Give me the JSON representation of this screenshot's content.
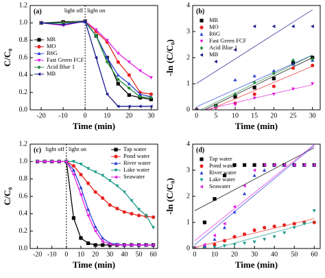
{
  "chart_data": [
    {
      "type": "line",
      "label": "(a)",
      "annotations": [
        "light off",
        "light on"
      ],
      "divider_x": 0,
      "xlabel": "Time (min)",
      "ylabel": "C/C₀",
      "xlim": [
        -25,
        33
      ],
      "xticks": [
        -20,
        -10,
        0,
        10,
        20,
        30
      ],
      "ylim": [
        0,
        1.2
      ],
      "yticks": [
        {
          "value": 0,
          "label": "0.0"
        },
        {
          "value": 0.2,
          "label": "0.2"
        },
        {
          "value": 0.4,
          "label": "0.4"
        },
        {
          "value": 0.6,
          "label": "0.6"
        },
        {
          "value": 0.8,
          "label": "0.8"
        },
        {
          "value": 1.0,
          "label": "1.0"
        },
        {
          "value": 1.2,
          "label": "1.2"
        }
      ],
      "legend": "left",
      "x": [
        -20,
        -10,
        0,
        5,
        10,
        15,
        20,
        25,
        30
      ],
      "series": [
        {
          "name": "MR",
          "color": "#000000",
          "marker": "square",
          "values": [
            1.0,
            1.01,
            1.02,
            0.85,
            0.6,
            0.3,
            0.17,
            0.14,
            0.12
          ]
        },
        {
          "name": "MO",
          "color": "#e8231f",
          "marker": "circle",
          "values": [
            1.0,
            1.0,
            1.02,
            0.9,
            0.78,
            0.55,
            0.4,
            0.2,
            0.18
          ]
        },
        {
          "name": "R6G",
          "color": "#2a3fd6",
          "marker": "triangle",
          "values": [
            1.0,
            1.0,
            1.01,
            0.85,
            0.6,
            0.4,
            0.3,
            0.18,
            0.15
          ]
        },
        {
          "name": "Fast Green FCF",
          "color": "#e020e0",
          "marker": "triangle-down",
          "values": [
            1.0,
            0.97,
            1.02,
            0.92,
            0.8,
            0.65,
            0.55,
            0.45,
            0.37
          ]
        },
        {
          "name": "Acid Blue 1",
          "color": "#1f8a3a",
          "marker": "diamond",
          "values": [
            1.0,
            1.0,
            1.02,
            0.85,
            0.55,
            0.35,
            0.25,
            0.15,
            0.14
          ]
        },
        {
          "name": "MB",
          "color": "#1a1a8c",
          "marker": "triangle-left",
          "values": [
            1.0,
            0.98,
            1.02,
            0.6,
            0.18,
            0.04,
            0.04,
            0.04,
            0.04
          ]
        }
      ]
    },
    {
      "type": "scatter",
      "label": "(b)",
      "fit": true,
      "xlabel": "Time (min)",
      "ylabel": "-ln (C/C₀)",
      "xlim": [
        -1,
        32
      ],
      "xticks": [
        0,
        5,
        10,
        15,
        20,
        25,
        30
      ],
      "ylim": [
        0,
        4
      ],
      "yticks": [
        0,
        1,
        2,
        3,
        4
      ],
      "legend": "top-left",
      "x": [
        0,
        5,
        10,
        15,
        20,
        25,
        30
      ],
      "series": [
        {
          "name": "MR",
          "color": "#000000",
          "marker": "square",
          "values": [
            0,
            0.15,
            0.5,
            0.85,
            1.2,
            1.8,
            2.0
          ]
        },
        {
          "name": "MO",
          "color": "#e8231f",
          "marker": "circle",
          "values": [
            0,
            0.1,
            0.25,
            0.6,
            0.9,
            1.6,
            1.7
          ]
        },
        {
          "name": "R6G",
          "color": "#2a3fd6",
          "marker": "triangle",
          "values": [
            0,
            0.15,
            1.15,
            1.3,
            1.5,
            1.75,
            1.9
          ]
        },
        {
          "name": "Fast Green FCF",
          "color": "#e020e0",
          "marker": "triangle-down",
          "values": [
            0,
            0.08,
            0.2,
            0.45,
            0.6,
            0.8,
            1.0
          ]
        },
        {
          "name": "Acid Blue 1",
          "color": "#1f8a3a",
          "marker": "diamond",
          "values": [
            0,
            0.15,
            0.6,
            1.05,
            1.4,
            1.9,
            1.95
          ]
        },
        {
          "name": "MB",
          "color": "#1a1a8c",
          "marker": "triangle-left",
          "values": [
            0,
            1.85,
            2.3,
            3.2,
            3.2,
            3.2,
            3.2
          ]
        }
      ]
    },
    {
      "type": "line",
      "label": "(c)",
      "annotations": [
        "light off",
        "light on"
      ],
      "divider_x": 0,
      "xlabel": "Time (min)",
      "ylabel": "C/C₀",
      "xlim": [
        -25,
        63
      ],
      "xticks": [
        -20,
        -10,
        0,
        10,
        20,
        30,
        40,
        50,
        60
      ],
      "ylim": [
        0,
        1.2
      ],
      "yticks": [
        {
          "value": 0,
          "label": "0.0"
        },
        {
          "value": 0.2,
          "label": "0.2"
        },
        {
          "value": 0.4,
          "label": "0.4"
        },
        {
          "value": 0.6,
          "label": "0.6"
        },
        {
          "value": 0.8,
          "label": "0.8"
        },
        {
          "value": 1.0,
          "label": "1.0"
        },
        {
          "value": 1.2,
          "label": "1.2"
        }
      ],
      "legend": "top-right",
      "x": [
        -20,
        -15,
        -10,
        -5,
        0,
        5,
        10,
        15,
        20,
        25,
        30,
        35,
        40,
        45,
        50,
        55,
        60
      ],
      "series": [
        {
          "name": "Tap water",
          "color": "#000000",
          "marker": "square",
          "values": [
            1,
            1,
            1,
            1,
            1,
            0.35,
            0.12,
            0.06,
            0.04,
            0.04,
            0.04,
            0.04,
            0.04,
            0.04,
            0.04,
            0.04,
            0.04
          ]
        },
        {
          "name": "Pond water",
          "color": "#e8231f",
          "marker": "circle",
          "values": [
            1,
            1,
            1,
            1,
            1,
            0.95,
            0.85,
            0.75,
            0.65,
            0.58,
            0.5,
            0.46,
            0.42,
            0.4,
            0.38,
            0.37,
            0.36
          ]
        },
        {
          "name": "River water",
          "color": "#2a3fd6",
          "marker": "triangle",
          "values": [
            1,
            1,
            1,
            1,
            1,
            0.9,
            0.7,
            0.45,
            0.25,
            0.12,
            0.06,
            0.05,
            0.04,
            0.04,
            0.04,
            0.04,
            0.04
          ]
        },
        {
          "name": "Lake water",
          "color": "#1a9a8a",
          "marker": "triangle-down",
          "values": [
            1,
            1,
            1,
            1,
            1,
            1,
            0.97,
            0.92,
            0.88,
            0.84,
            0.78,
            0.72,
            0.65,
            0.55,
            0.45,
            0.38,
            0.24
          ]
        },
        {
          "name": "Seawater",
          "color": "#e020e0",
          "marker": "triangle-left",
          "values": [
            1,
            1,
            1,
            1,
            1,
            0.85,
            0.62,
            0.38,
            0.2,
            0.08,
            0.05,
            0.04,
            0.04,
            0.04,
            0.04,
            0.04,
            0.04
          ]
        }
      ]
    },
    {
      "type": "scatter",
      "label": "(d)",
      "fit": true,
      "xlabel": "Time (min)",
      "ylabel": "-ln (C/C₀)",
      "xlim": [
        -1,
        63
      ],
      "xticks": [
        0,
        10,
        20,
        30,
        40,
        50,
        60
      ],
      "ylim": [
        0,
        4
      ],
      "yticks": [
        0,
        1,
        2,
        3,
        4
      ],
      "legend": "top-left",
      "x": [
        0,
        5,
        10,
        15,
        20,
        25,
        30,
        35,
        40,
        45,
        50,
        55,
        60
      ],
      "series": [
        {
          "name": "Tap water",
          "color": "#000000",
          "marker": "square",
          "values": [
            0,
            1.0,
            1.9,
            2.8,
            3.2,
            3.2,
            3.2,
            3.2,
            3.2,
            3.2,
            3.2,
            3.2,
            3.2
          ]
        },
        {
          "name": "Pond water",
          "color": "#e8231f",
          "marker": "circle",
          "values": [
            0,
            0.05,
            0.15,
            0.3,
            0.45,
            0.55,
            0.7,
            0.8,
            0.85,
            0.9,
            0.95,
            1.0,
            1.0
          ]
        },
        {
          "name": "River water",
          "color": "#2a3fd6",
          "marker": "triangle",
          "values": [
            0,
            0.1,
            0.35,
            0.8,
            1.4,
            2.1,
            2.8,
            3.0,
            3.2,
            3.2,
            3.2,
            3.2,
            3.2
          ]
        },
        {
          "name": "Lake water",
          "color": "#1a9a8a",
          "marker": "triangle-down",
          "values": [
            0,
            0.0,
            0.05,
            0.1,
            0.15,
            0.2,
            0.25,
            0.35,
            0.45,
            0.6,
            0.8,
            0.95,
            1.45
          ]
        },
        {
          "name": "Seawater",
          "color": "#e020e0",
          "marker": "triangle-left",
          "values": [
            0,
            0.15,
            0.5,
            0.95,
            1.6,
            2.4,
            3.0,
            3.2,
            3.2,
            3.2,
            3.2,
            3.2,
            3.2
          ]
        }
      ]
    }
  ]
}
